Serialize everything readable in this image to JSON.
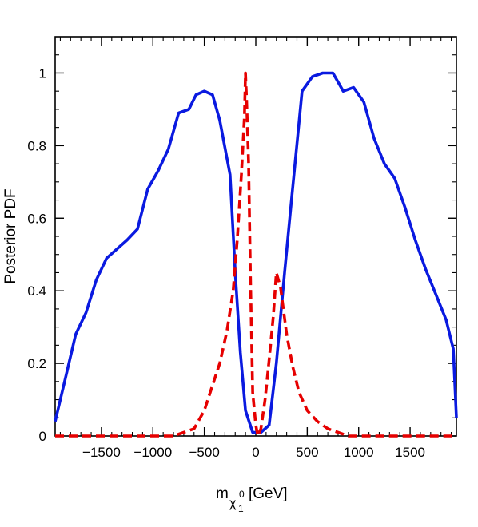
{
  "chart_data": {
    "type": "line",
    "title": "",
    "xlabel": {
      "main": "m",
      "subscript": "χ",
      "sub_superscript": "0",
      "sub_subscript": "1",
      "unit": "[GeV]"
    },
    "ylabel": "Posterior PDF",
    "xlim": [
      -1950,
      1950
    ],
    "ylim": [
      0,
      1.1
    ],
    "xticks": [
      -1500,
      -1000,
      -500,
      0,
      500,
      1000,
      1500
    ],
    "xtick_labels": [
      "−1500",
      "−1000",
      "−500",
      "0",
      "500",
      "1000",
      "1500"
    ],
    "yticks": [
      0,
      0.2,
      0.4,
      0.6,
      0.8,
      1
    ],
    "ytick_labels": [
      "0",
      "0.2",
      "0.4",
      "0.6",
      "0.8",
      "1"
    ],
    "grid": false,
    "legend": "none",
    "series": [
      {
        "color": "#0a1ae0",
        "dash": "solid",
        "points": [
          [
            -1950,
            0.04
          ],
          [
            -1850,
            0.16
          ],
          [
            -1750,
            0.28
          ],
          [
            -1650,
            0.34
          ],
          [
            -1550,
            0.43
          ],
          [
            -1450,
            0.49
          ],
          [
            -1250,
            0.54
          ],
          [
            -1150,
            0.57
          ],
          [
            -1050,
            0.68
          ],
          [
            -950,
            0.73
          ],
          [
            -850,
            0.79
          ],
          [
            -750,
            0.89
          ],
          [
            -650,
            0.9
          ],
          [
            -580,
            0.94
          ],
          [
            -500,
            0.95
          ],
          [
            -420,
            0.94
          ],
          [
            -350,
            0.87
          ],
          [
            -250,
            0.72
          ],
          [
            -200,
            0.45
          ],
          [
            -150,
            0.23
          ],
          [
            -100,
            0.07
          ],
          [
            -30,
            0.01
          ],
          [
            50,
            0.01
          ],
          [
            130,
            0.03
          ],
          [
            200,
            0.2
          ],
          [
            280,
            0.45
          ],
          [
            350,
            0.66
          ],
          [
            450,
            0.95
          ],
          [
            550,
            0.99
          ],
          [
            650,
            1.0
          ],
          [
            750,
            1.0
          ],
          [
            850,
            0.95
          ],
          [
            950,
            0.96
          ],
          [
            1050,
            0.92
          ],
          [
            1150,
            0.82
          ],
          [
            1250,
            0.75
          ],
          [
            1350,
            0.71
          ],
          [
            1450,
            0.63
          ],
          [
            1550,
            0.54
          ],
          [
            1650,
            0.46
          ],
          [
            1750,
            0.39
          ],
          [
            1850,
            0.32
          ],
          [
            1920,
            0.24
          ],
          [
            1950,
            0.05
          ]
        ]
      },
      {
        "color": "#e60000",
        "dash": "dashed",
        "points": [
          [
            -1950,
            0.0
          ],
          [
            -1500,
            0.0
          ],
          [
            -1000,
            0.0
          ],
          [
            -800,
            0.0
          ],
          [
            -700,
            0.01
          ],
          [
            -600,
            0.02
          ],
          [
            -500,
            0.07
          ],
          [
            -420,
            0.14
          ],
          [
            -350,
            0.2
          ],
          [
            -280,
            0.29
          ],
          [
            -220,
            0.4
          ],
          [
            -180,
            0.54
          ],
          [
            -140,
            0.72
          ],
          [
            -110,
            0.88
          ],
          [
            -100,
            1.0
          ],
          [
            -90,
            0.93
          ],
          [
            -70,
            0.75
          ],
          [
            -50,
            0.4
          ],
          [
            -30,
            0.12
          ],
          [
            0,
            0.03
          ],
          [
            20,
            0.0
          ],
          [
            50,
            0.02
          ],
          [
            90,
            0.1
          ],
          [
            130,
            0.21
          ],
          [
            170,
            0.33
          ],
          [
            200,
            0.45
          ],
          [
            240,
            0.41
          ],
          [
            300,
            0.28
          ],
          [
            360,
            0.19
          ],
          [
            420,
            0.12
          ],
          [
            500,
            0.07
          ],
          [
            600,
            0.04
          ],
          [
            700,
            0.02
          ],
          [
            800,
            0.01
          ],
          [
            900,
            0.0
          ],
          [
            1000,
            0.0
          ],
          [
            1500,
            0.0
          ],
          [
            1950,
            0.0
          ]
        ]
      }
    ]
  }
}
